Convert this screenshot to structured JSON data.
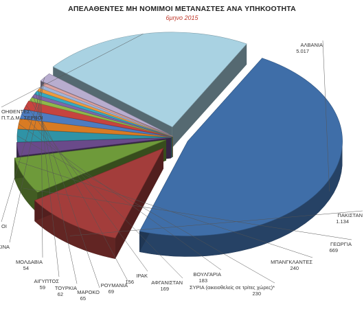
{
  "chart_data": {
    "type": "pie",
    "title": "ΑΠΕΛΑΘΕΝΤΕΣ ΜΗ ΝΟΜΙΜΟΙ ΜΕΤΑΝΑΣΤΕΣ ΑΝΑ ΥΠΗΚΟΟΤΗΤΑ",
    "subtitle": "6μηνο 2015",
    "slices": [
      {
        "name": "ΑΛΒΑΝΙΑ",
        "value": "5.017",
        "num": 5017,
        "color": "#3f6ea8"
      },
      {
        "name": "ΠΑΚΙΣΤΑΝ",
        "value": "1.134",
        "num": 1134,
        "color": "#a33d3b"
      },
      {
        "name": "ΓΕΩΡΓΙΑ",
        "value": "669",
        "num": 669,
        "color": "#6e9a3a"
      },
      {
        "name": "ΜΠΑΝΓΚΛΑΝΤΕΣ",
        "value": "240",
        "num": 240,
        "color": "#6a4a8a"
      },
      {
        "name": "ΣΥΡΙΑ (αικειοθελείς σε τρίτες χώρες)*",
        "value": "230",
        "num": 230,
        "color": "#2f93a6"
      },
      {
        "name": "ΒΟΥΛΓΑΡΙΑ",
        "value": "183",
        "num": 183,
        "color": "#d97b23"
      },
      {
        "name": "ΑΦΓΑΝΙΣΤΑΝ",
        "value": "169",
        "num": 169,
        "color": "#4d7cc0"
      },
      {
        "name": "ΙΡΑΚ",
        "value": "156",
        "num": 156,
        "color": "#c6443f"
      },
      {
        "name": "ΡΟΥΜΑΝΙΑ",
        "value": "69",
        "num": 69,
        "color": "#8fb84a"
      },
      {
        "name": "ΜΑΡΟΚΟ",
        "value": "65",
        "num": 65,
        "color": "#8066a8"
      },
      {
        "name": "ΤΟΥΡΚΙΑ",
        "value": "62",
        "num": 62,
        "color": "#35a9c2"
      },
      {
        "name": "ΑΙΓΥΠΤΟΣ",
        "value": "59",
        "num": 59,
        "color": "#ee9a3e"
      },
      {
        "name": "ΜΟΛΔΑΒΙΑ",
        "value": "54",
        "num": 54,
        "color": "#9db3d9"
      },
      {
        "name": "ΚΙΝΑ",
        "value": "47",
        "num": 47,
        "color": "#dca3a1"
      },
      {
        "name": "ΟΙ",
        "value": "",
        "num": 160,
        "color": "#b8adcf"
      },
      {
        "name": "ΟΗΘΕΝΤΕΣ Π.Τ.Δ.Μ., ΣΕΡΒΟΙ",
        "value": "",
        "num": 2350,
        "color": "#a9d2e2"
      }
    ]
  }
}
